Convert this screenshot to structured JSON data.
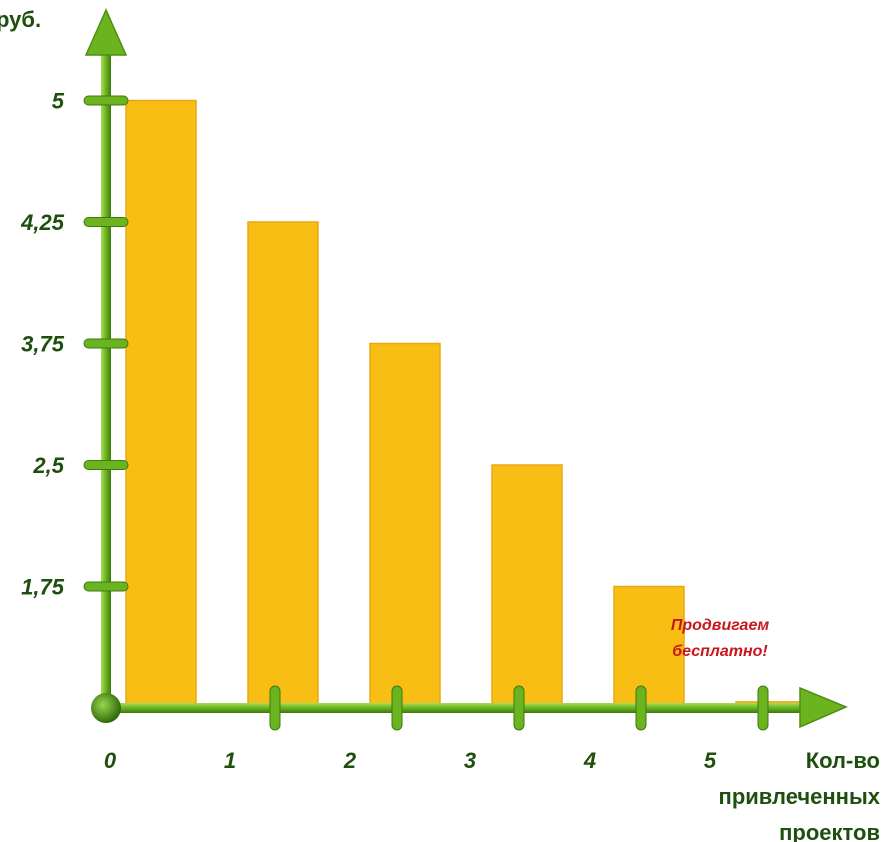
{
  "chart_data": {
    "type": "bar",
    "categories": [
      "0",
      "1",
      "2",
      "3",
      "4",
      "5"
    ],
    "values": [
      5,
      4,
      3,
      2,
      1,
      0.05
    ],
    "ytick_values": [
      1,
      2,
      3,
      4,
      5
    ],
    "ytick_labels": [
      "1,75",
      "2,5",
      "3,75",
      "4,25",
      "5"
    ],
    "xtick_labels": [
      "0",
      "1",
      "2",
      "3",
      "4",
      "5"
    ],
    "ylabel": "руб.",
    "xlabel_lines": [
      "Кол-во",
      "привлеченных",
      "проектов"
    ],
    "annotation_lines": [
      "Продвигаем",
      "бесплатно!"
    ],
    "ylim": [
      0,
      5.8
    ],
    "grid": false,
    "colors": {
      "bar_fill": "#F9BE13",
      "bar_stroke": "#E7A812",
      "axis": "#6BB31F",
      "axis_dark": "#3E7A10",
      "axis_light": "#A8DC5A",
      "label": "#1F4F0F",
      "annotation": "#C8161D"
    }
  }
}
